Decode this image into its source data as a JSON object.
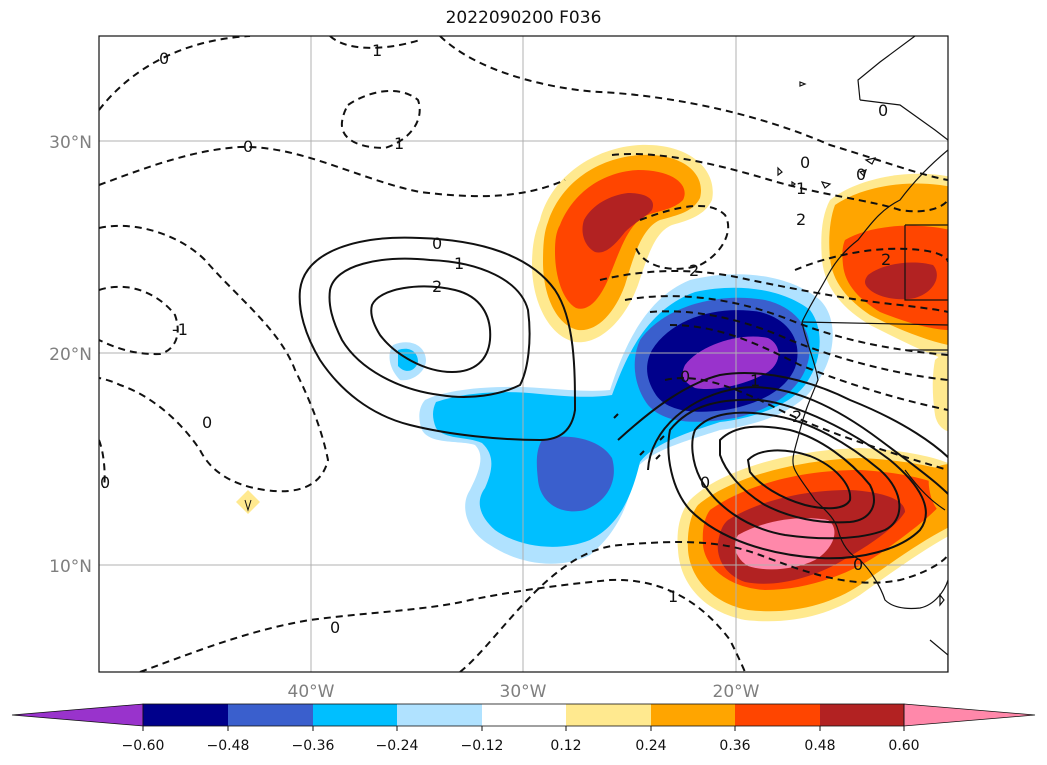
{
  "title": "2022090200 F036",
  "lat_labels": [
    "30°N",
    "20°N",
    "10°N"
  ],
  "lon_labels": [
    "40°W",
    "30°W",
    "20°W"
  ],
  "colorbar": {
    "ticks": [
      "−0.60",
      "−0.48",
      "−0.36",
      "−0.24",
      "−0.12",
      "0.12",
      "0.24",
      "0.36",
      "0.48",
      "0.60"
    ],
    "colors": [
      "#9933cc",
      "#00008b",
      "#3a5fcd",
      "#00bfff",
      "#b0e2ff",
      "#ffffff",
      "#ffe98f",
      "#ffa500",
      "#ff4500",
      "#b22222",
      "#ff88aa"
    ]
  },
  "contour_labels": {
    "c1": "0",
    "c2": "1",
    "c3": "0",
    "c4": "1",
    "c5": "0",
    "c6": "1",
    "c7": "2",
    "c8": "-1",
    "c9": "0",
    "c10": "0",
    "c11": "1",
    "c12": "2",
    "c13": "2",
    "c14": "2",
    "c15": "1",
    "c16": "2",
    "c17": "0",
    "c18": "0",
    "c19": "1",
    "c20": "0",
    "c21": "0",
    "c22": "0",
    "c23": "0",
    "c24": "0"
  }
}
